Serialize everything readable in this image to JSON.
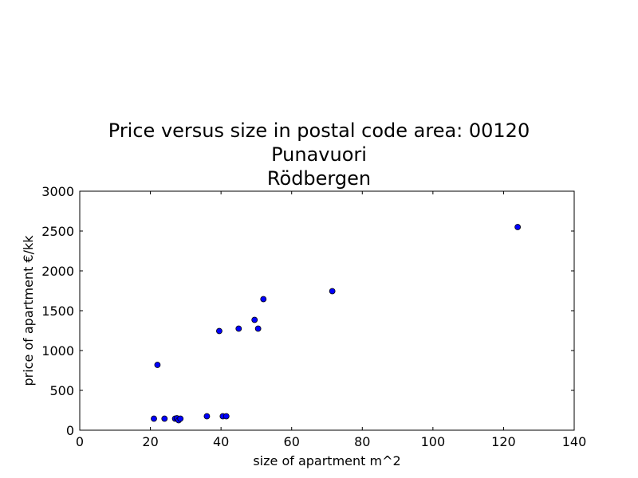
{
  "chart_data": {
    "type": "scatter",
    "title_lines": [
      "Price versus size in postal code area: 00120",
      "Punavuori",
      "Rödbergen"
    ],
    "xlabel": "size of apartment m^2",
    "ylabel": "price of apartment €/kk",
    "xlim": [
      0,
      140
    ],
    "ylim": [
      0,
      3000
    ],
    "xticks": [
      0,
      20,
      40,
      60,
      80,
      100,
      120,
      140
    ],
    "yticks": [
      0,
      500,
      1000,
      1500,
      2000,
      2500,
      3000
    ],
    "grid": false,
    "legend": "none",
    "marker_color": "#0000ff",
    "points": [
      {
        "x": 21.0,
        "y": 145
      },
      {
        "x": 22.0,
        "y": 820
      },
      {
        "x": 24.0,
        "y": 145
      },
      {
        "x": 27.0,
        "y": 145
      },
      {
        "x": 27.5,
        "y": 150
      },
      {
        "x": 28.0,
        "y": 125
      },
      {
        "x": 28.5,
        "y": 145
      },
      {
        "x": 36.0,
        "y": 175
      },
      {
        "x": 39.5,
        "y": 1245
      },
      {
        "x": 40.5,
        "y": 175
      },
      {
        "x": 41.5,
        "y": 175
      },
      {
        "x": 45.0,
        "y": 1275
      },
      {
        "x": 49.5,
        "y": 1385
      },
      {
        "x": 50.5,
        "y": 1275
      },
      {
        "x": 52.0,
        "y": 1645
      },
      {
        "x": 71.5,
        "y": 1745
      },
      {
        "x": 124.0,
        "y": 2550
      }
    ]
  }
}
